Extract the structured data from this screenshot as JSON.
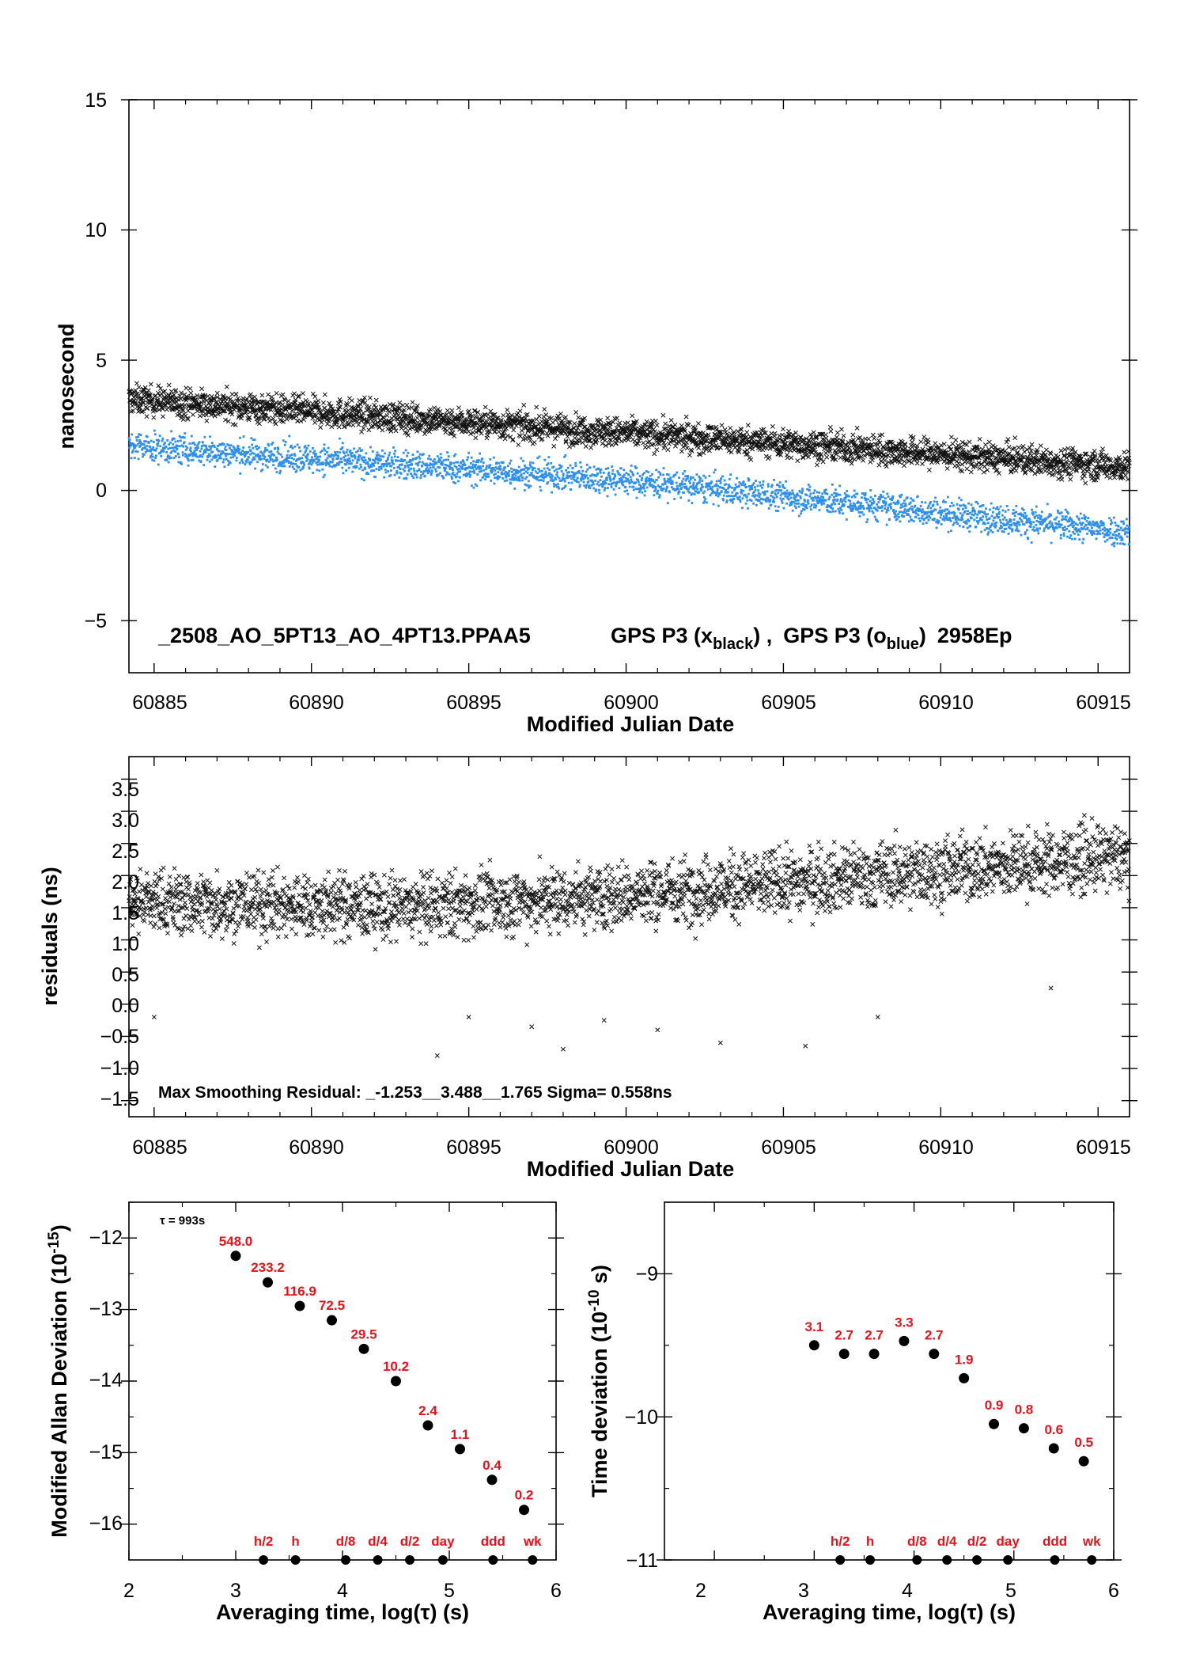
{
  "colors": {
    "series_x": "#111111",
    "series_o": "#2d8ff0",
    "labels": "#e8121b",
    "axis": "#000000"
  },
  "chart_data": [
    {
      "type": "scatter",
      "xlabel": "Modified Julian Date",
      "ylabel": "nanosecond",
      "xlim": [
        60884.2,
        60916.0
      ],
      "ylim": [
        -7,
        15
      ],
      "xticks": [
        "60885",
        "60890",
        "60895",
        "60900",
        "60905",
        "60910",
        "60915"
      ],
      "yticks": [
        "15",
        "10",
        "5",
        "0",
        "−5"
      ],
      "annotation": "_2508_AO_5PT13_AO_4PT13.PPAA5",
      "legend_parts": {
        "a1": "GPS P3 (x",
        "a_sub": "black",
        "a2": ") ,",
        "b1": "GPS P3 (o",
        "b_sub": "blue",
        "b2": ")",
        "count": "2958Ep"
      },
      "grid": false,
      "series": [
        {
          "marker": "x",
          "color": "#111111",
          "num_points": 2958,
          "trend": {
            "x": [
              60884.2,
              60900,
              60916
            ],
            "y": [
              3.5,
              2.2,
              0.9
            ]
          },
          "scatter_sd": 0.55
        },
        {
          "marker": "o",
          "color": "#2d8ff0",
          "num_points": 2958,
          "trend": {
            "x": [
              60884.2,
              60900,
              60916
            ],
            "y": [
              1.7,
              0.4,
              -1.6
            ]
          },
          "scatter_sd": 0.55
        }
      ]
    },
    {
      "type": "scatter",
      "xlabel": "Modified Julian Date",
      "ylabel": "residuals (ns)",
      "xlim": [
        60884.2,
        60916.0
      ],
      "ylim": [
        -1.75,
        3.85
      ],
      "xticks": [
        "60885",
        "60890",
        "60895",
        "60900",
        "60905",
        "60910",
        "60915"
      ],
      "yticks": [
        "3.5",
        "3.0",
        "2.5",
        "2.0",
        "1.5",
        "1.0",
        "0.5",
        "0.0",
        "−0.5",
        "−1.0",
        "−1.5"
      ],
      "annotation": "Max Smoothing Residual: _-1.253__3.488__1.765  Sigma= 0.558ns",
      "grid": false,
      "series": [
        {
          "marker": "x",
          "color": "#111111",
          "num_points": 2958,
          "trend": {
            "x": [
              60884.2,
              60893,
              60900,
              60916
            ],
            "y": [
              1.6,
              1.5,
              1.7,
              2.3
            ]
          },
          "scatter_sd": 0.5
        }
      ],
      "outliers": {
        "x": [
          60885,
          60894,
          60897,
          60898,
          60899.3,
          60901,
          60903,
          60908,
          60895,
          60905.7,
          60913.5
        ],
        "y": [
          -0.2,
          -0.8,
          -0.35,
          -0.7,
          -0.25,
          -0.4,
          -0.6,
          -0.2,
          -0.2,
          -0.65,
          0.25
        ]
      }
    },
    {
      "type": "scatter",
      "xlabel": "Averaging time, log(τ) (s)",
      "ylabel": "Modified Allan Deviation (10",
      "ylabel_sup": "-15",
      "ylabel_end": ")",
      "xlim": [
        2,
        6
      ],
      "ylim": [
        -16.5,
        -11.5
      ],
      "xticks": [
        "2",
        "3",
        "4",
        "5",
        "6"
      ],
      "yticks": [
        "−12",
        "−13",
        "−14",
        "−15",
        "−16"
      ],
      "tau_note": "τ = 993s",
      "grid": false,
      "series": [
        {
          "name": "",
          "x": [
            3.0,
            3.3,
            3.6,
            3.9,
            4.2,
            4.5,
            4.8,
            5.1,
            5.4,
            5.7
          ],
          "y": [
            -12.25,
            -12.62,
            -12.95,
            -13.15,
            -13.55,
            -14.0,
            -14.62,
            -14.95,
            -15.38,
            -15.8
          ],
          "labels": [
            "548.0",
            "233.2",
            "116.9",
            "72.5",
            "29.5",
            "10.2",
            "2.4",
            "1.1",
            "0.4",
            "0.2"
          ]
        }
      ],
      "markers": {
        "x": [
          3.26,
          3.56,
          4.03,
          4.33,
          4.63,
          4.94,
          5.41,
          5.78
        ],
        "labels": [
          "h/2",
          "h",
          "d/8",
          "d/4",
          "d/2",
          "day",
          "ddd",
          "wk"
        ]
      }
    },
    {
      "type": "scatter",
      "xlabel": "Averaging time, log(τ) (s)",
      "ylabel": "Time deviation (10",
      "ylabel_sup": "-10",
      "ylabel_end": " s)",
      "xlim": [
        1.5,
        6.0
      ],
      "ylim": [
        -11.0,
        -8.5
      ],
      "xticks": [
        "2",
        "3",
        "4",
        "5",
        "6"
      ],
      "yticks": [
        "−9",
        "−10",
        "−11"
      ],
      "grid": false,
      "series": [
        {
          "name": "",
          "x": [
            3.0,
            3.3,
            3.6,
            3.9,
            4.2,
            4.5,
            4.8,
            5.1,
            5.4,
            5.7
          ],
          "y": [
            -9.5,
            -9.56,
            -9.56,
            -9.47,
            -9.56,
            -9.73,
            -10.05,
            -10.08,
            -10.22,
            -10.31
          ],
          "labels": [
            "3.1",
            "2.7",
            "2.7",
            "3.3",
            "2.7",
            "1.9",
            "0.9",
            "0.8",
            "0.6",
            "0.5"
          ]
        }
      ],
      "markers": {
        "x": [
          3.26,
          3.56,
          4.03,
          4.33,
          4.63,
          4.94,
          5.41,
          5.78
        ],
        "labels": [
          "h/2",
          "h",
          "d/8",
          "d/4",
          "d/2",
          "day",
          "ddd",
          "wk"
        ]
      }
    }
  ]
}
